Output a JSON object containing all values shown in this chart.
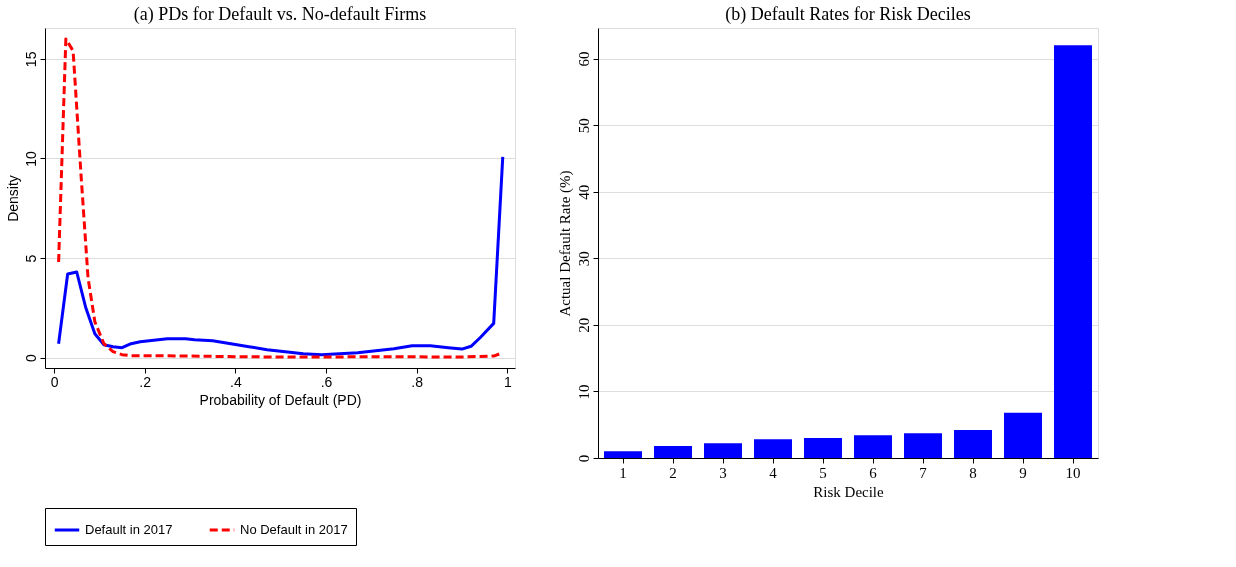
{
  "chart_data": [
    {
      "type": "line",
      "title": "(a) PDs for Default vs. No-default Firms",
      "xlabel": "Probability of Default (PD)",
      "ylabel": "Density",
      "xlim": [
        -0.02,
        1.017
      ],
      "ylim": [
        -0.52,
        16.55
      ],
      "xticks": [
        0,
        {
          "value": 0.2,
          "label": ".2"
        },
        {
          "value": 0.4,
          "label": ".4"
        },
        {
          "value": 0.6,
          "label": ".6"
        },
        {
          "value": 0.8,
          "label": ".8"
        },
        1
      ],
      "yticks": [
        0,
        5,
        10,
        15
      ],
      "grid": "y",
      "legend": "bottom",
      "series": [
        {
          "name": "Default in 2017",
          "color": "#0000ff",
          "line_style": "solid",
          "x": [
            0.01,
            0.03,
            0.05,
            0.07,
            0.09,
            0.11,
            0.13,
            0.15,
            0.17,
            0.19,
            0.21,
            0.23,
            0.25,
            0.29,
            0.31,
            0.35,
            0.39,
            0.43,
            0.47,
            0.51,
            0.55,
            0.59,
            0.63,
            0.67,
            0.71,
            0.75,
            0.79,
            0.83,
            0.87,
            0.9,
            0.92,
            0.94,
            0.97,
            0.99
          ],
          "values": [
            0.7,
            4.2,
            4.3,
            2.5,
            1.2,
            0.65,
            0.55,
            0.5,
            0.7,
            0.8,
            0.85,
            0.9,
            0.95,
            0.95,
            0.9,
            0.85,
            0.7,
            0.55,
            0.4,
            0.3,
            0.2,
            0.15,
            0.2,
            0.25,
            0.35,
            0.45,
            0.6,
            0.6,
            0.5,
            0.43,
            0.57,
            1.0,
            1.72,
            10.08
          ]
        },
        {
          "name": "No Default in 2017",
          "color": "#ff0000",
          "line_style": "dashed",
          "x": [
            0.01,
            0.026,
            0.042,
            0.06,
            0.075,
            0.09,
            0.11,
            0.13,
            0.15,
            0.17,
            0.2,
            0.3,
            0.4,
            0.5,
            0.6,
            0.7,
            0.8,
            0.9,
            0.97,
            0.99
          ],
          "values": [
            4.8,
            16.0,
            15.4,
            9.0,
            4.0,
            1.8,
            0.7,
            0.3,
            0.15,
            0.1,
            0.1,
            0.08,
            0.05,
            0.03,
            0.03,
            0.05,
            0.04,
            0.03,
            0.08,
            0.25
          ]
        }
      ]
    },
    {
      "type": "bar",
      "title": "(b) Default Rates for Risk Deciles",
      "xlabel": "Risk Decile",
      "ylabel": "Actual Default Rate (%)",
      "categories": [
        "1",
        "2",
        "3",
        "4",
        "5",
        "6",
        "7",
        "8",
        "9",
        "10"
      ],
      "ylim": [
        0,
        64.6
      ],
      "yticks": [
        0,
        10,
        20,
        30,
        40,
        50,
        60
      ],
      "grid": "y",
      "series": [
        {
          "color": "#0000ff",
          "values": [
            1.0,
            1.8,
            2.2,
            2.8,
            3.0,
            3.4,
            3.7,
            4.2,
            6.8,
            62.0
          ]
        }
      ]
    }
  ]
}
